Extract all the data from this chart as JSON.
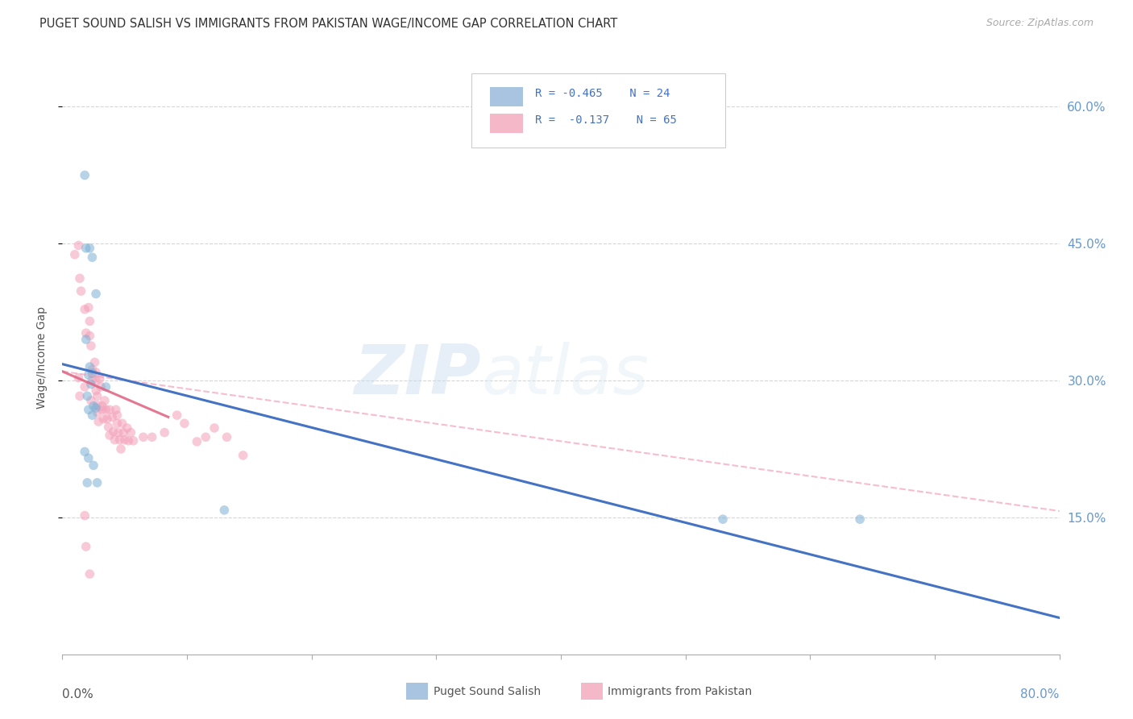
{
  "title": "PUGET SOUND SALISH VS IMMIGRANTS FROM PAKISTAN WAGE/INCOME GAP CORRELATION CHART",
  "source": "Source: ZipAtlas.com",
  "ylabel": "Wage/Income Gap",
  "xlim": [
    0.0,
    0.8
  ],
  "ylim": [
    0.0,
    0.65
  ],
  "yticks": [
    0.15,
    0.3,
    0.45,
    0.6
  ],
  "ytick_labels": [
    "15.0%",
    "30.0%",
    "45.0%",
    "60.0%"
  ],
  "legend_bottom": [
    "Puget Sound Salish",
    "Immigrants from Pakistan"
  ],
  "watermark_zip": "ZIP",
  "watermark_atlas": "atlas",
  "blue_scatter_x": [
    0.018,
    0.019,
    0.022,
    0.024,
    0.027,
    0.019,
    0.022,
    0.024,
    0.021,
    0.023,
    0.02,
    0.025,
    0.027,
    0.021,
    0.024,
    0.035,
    0.018,
    0.021,
    0.025,
    0.028,
    0.13,
    0.53,
    0.64,
    0.02
  ],
  "blue_scatter_y": [
    0.525,
    0.445,
    0.445,
    0.435,
    0.395,
    0.345,
    0.315,
    0.308,
    0.306,
    0.296,
    0.283,
    0.272,
    0.27,
    0.268,
    0.262,
    0.293,
    0.222,
    0.215,
    0.207,
    0.188,
    0.158,
    0.148,
    0.148,
    0.188
  ],
  "pink_scatter_x": [
    0.01,
    0.013,
    0.014,
    0.015,
    0.018,
    0.019,
    0.021,
    0.022,
    0.022,
    0.023,
    0.024,
    0.024,
    0.026,
    0.027,
    0.027,
    0.027,
    0.028,
    0.028,
    0.028,
    0.029,
    0.03,
    0.031,
    0.032,
    0.033,
    0.034,
    0.035,
    0.036,
    0.037,
    0.038,
    0.038,
    0.04,
    0.041,
    0.042,
    0.043,
    0.044,
    0.044,
    0.045,
    0.046,
    0.047,
    0.048,
    0.049,
    0.05,
    0.052,
    0.053,
    0.055,
    0.057,
    0.065,
    0.072,
    0.082,
    0.092,
    0.098,
    0.108,
    0.115,
    0.122,
    0.132,
    0.145,
    0.018,
    0.019,
    0.022,
    0.013,
    0.014,
    0.018,
    0.023,
    0.032
  ],
  "pink_scatter_y": [
    0.438,
    0.448,
    0.412,
    0.398,
    0.378,
    0.352,
    0.38,
    0.365,
    0.349,
    0.338,
    0.312,
    0.301,
    0.32,
    0.309,
    0.3,
    0.289,
    0.283,
    0.273,
    0.265,
    0.255,
    0.302,
    0.293,
    0.268,
    0.258,
    0.278,
    0.268,
    0.258,
    0.249,
    0.24,
    0.268,
    0.26,
    0.244,
    0.235,
    0.268,
    0.262,
    0.253,
    0.243,
    0.235,
    0.225,
    0.253,
    0.243,
    0.235,
    0.248,
    0.234,
    0.243,
    0.234,
    0.238,
    0.238,
    0.243,
    0.262,
    0.253,
    0.233,
    0.238,
    0.248,
    0.238,
    0.218,
    0.152,
    0.118,
    0.088,
    0.303,
    0.283,
    0.293,
    0.278,
    0.272
  ],
  "blue_line_x": [
    0.0,
    0.8
  ],
  "blue_line_y": [
    0.318,
    0.04
  ],
  "pink_solid_line_x": [
    0.0,
    0.085
  ],
  "pink_solid_line_y": [
    0.31,
    0.26
  ],
  "pink_dashed_line_x": [
    0.0,
    0.8
  ],
  "pink_dashed_line_y": [
    0.31,
    0.157
  ],
  "blue_scatter_color": "#7bafd4",
  "pink_scatter_color": "#f4a0b8",
  "blue_line_color": "#4472c4",
  "pink_solid_color": "#e06080",
  "pink_dashed_color": "#f4a0b8",
  "background_color": "#ffffff",
  "grid_color": "#cccccc",
  "title_color": "#333333",
  "right_label_color": "#6699cc",
  "scatter_size": 70,
  "scatter_alpha": 0.55,
  "line_width": 2.2
}
